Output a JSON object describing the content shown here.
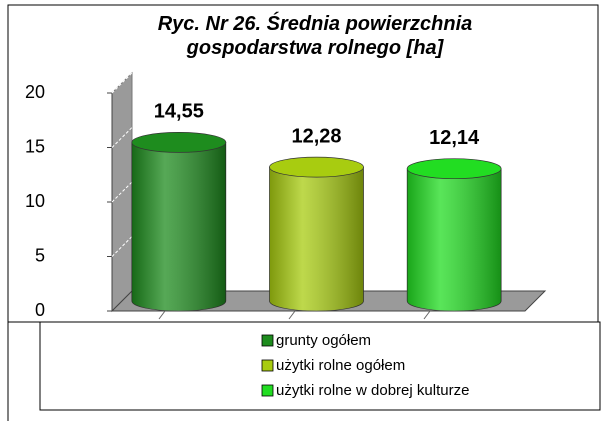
{
  "chart_data": {
    "type": "bar",
    "title": "Ryc. Nr 26. Średnia powierzchnia gospodarstwa rolnego [ha]",
    "categories": [
      null
    ],
    "series": [
      {
        "name": "grunty ogółem",
        "color": "#1e8c1e",
        "values": [
          14.55
        ],
        "value_labels": [
          "14,55"
        ]
      },
      {
        "name": "użytki rolne ogółem",
        "color": "#a8cc10",
        "values": [
          12.28
        ],
        "value_labels": [
          "12,28"
        ]
      },
      {
        "name": "użytki rolne w dobrej kulturze",
        "color": "#22dd22",
        "values": [
          12.14
        ],
        "value_labels": [
          "12,14"
        ]
      }
    ],
    "ylim": [
      0,
      20
    ],
    "yticks": [
      0,
      5,
      10,
      15,
      20
    ],
    "grid": true,
    "legend": "bottom"
  }
}
